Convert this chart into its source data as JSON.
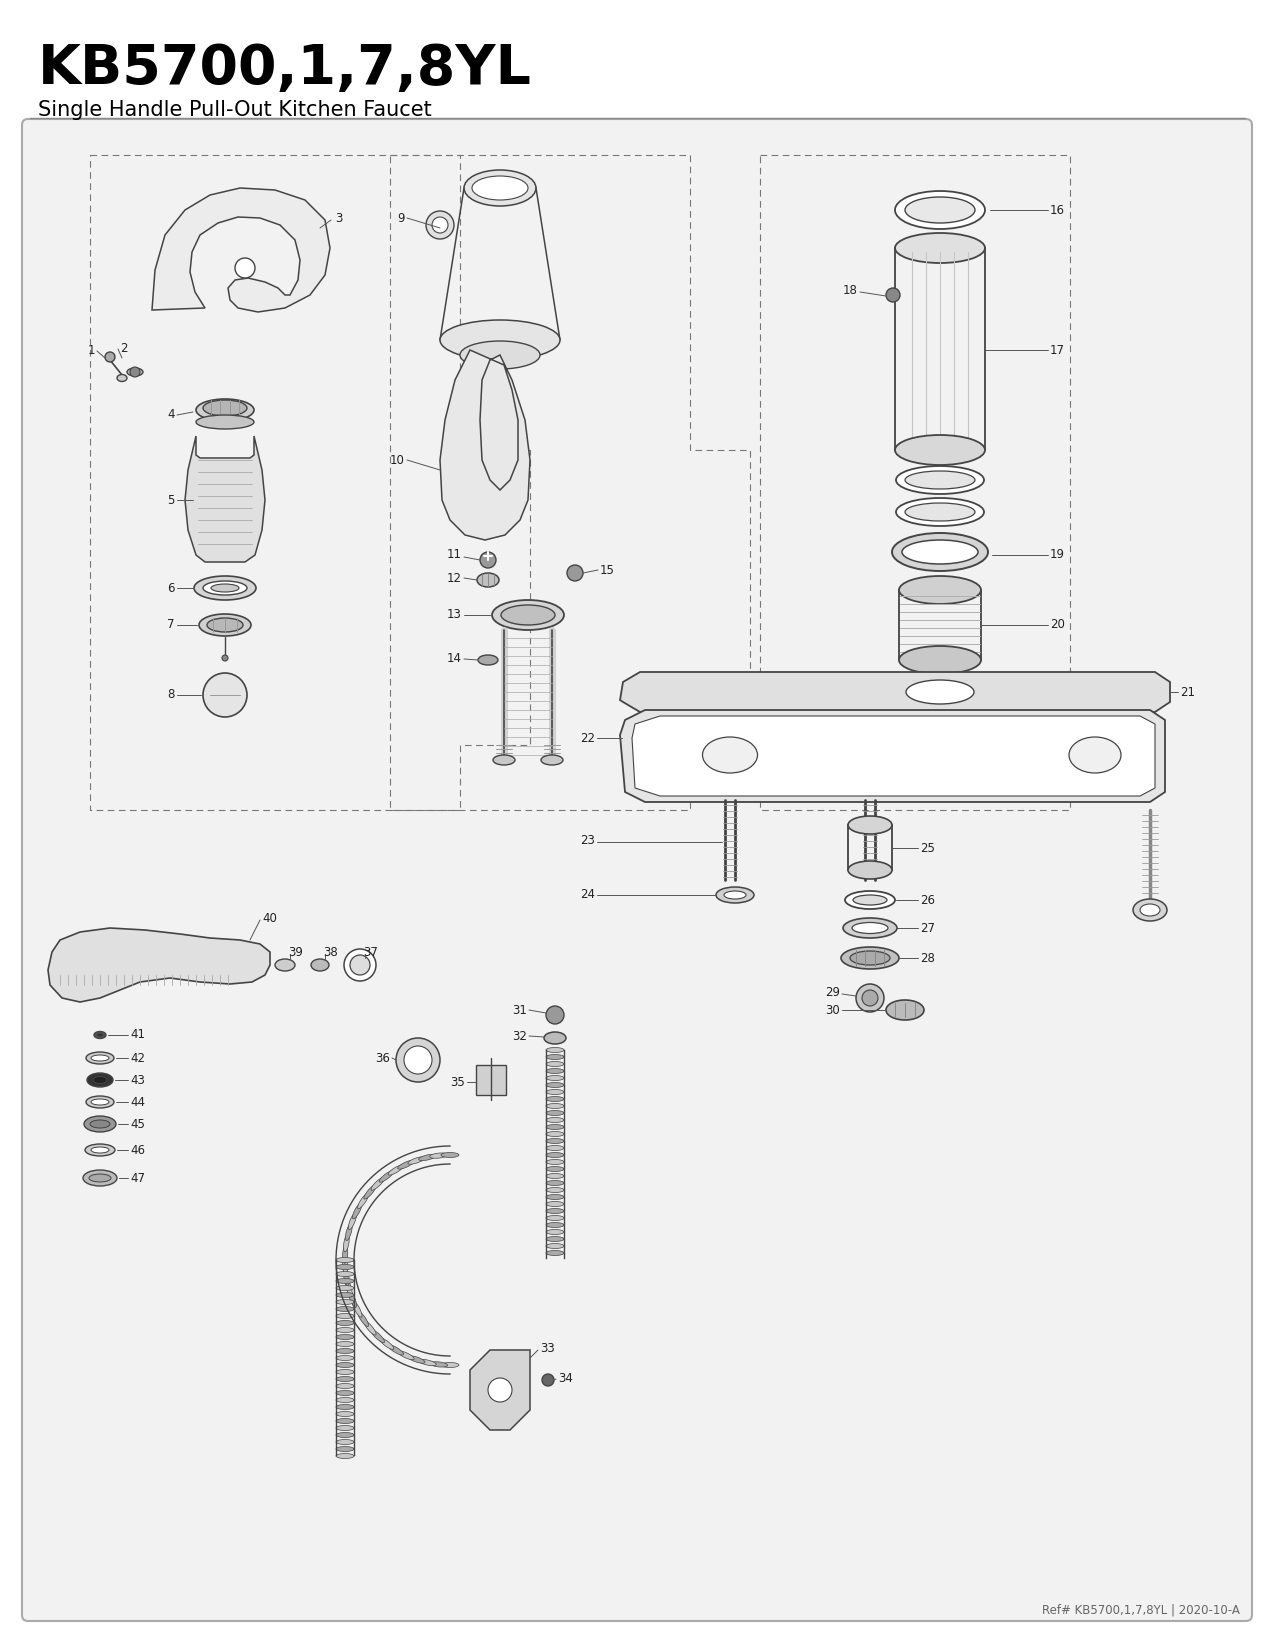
{
  "title": "KB5700,1,7,8YL",
  "subtitle": "Single Handle Pull-Out Kitchen Faucet",
  "footer": "Ref# KB5700,1,7,8YL | 2020-10-A",
  "fig_width": 12.75,
  "fig_height": 16.5,
  "dpi": 100,
  "lc": "#444444",
  "tc": "#222222",
  "bg": "white",
  "panel_bg": "#f2f2f2"
}
